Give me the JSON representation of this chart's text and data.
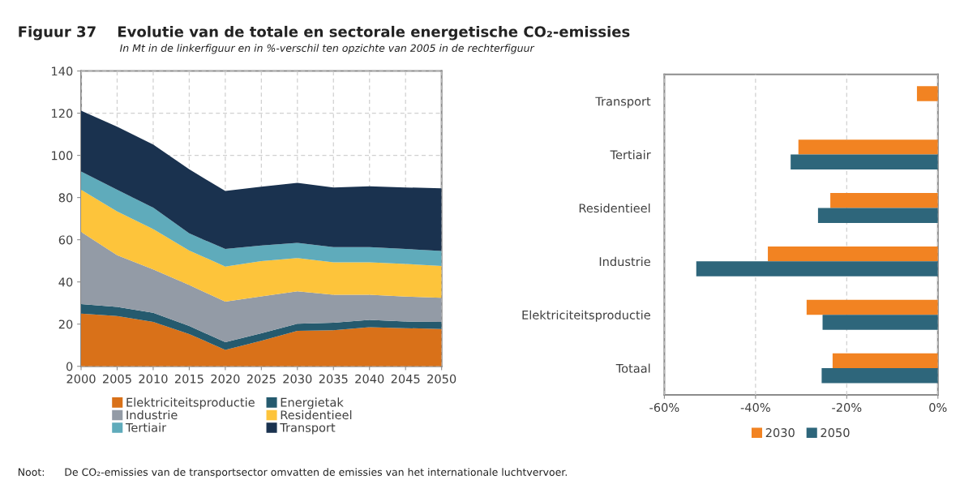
{
  "chart_data": [
    {
      "type": "area",
      "stacked": true,
      "title": "Figuur 37    Evolutie van de totale en sectorale energetische CO₂-emissies",
      "subtitle": "In Mt in de linkerfiguur en in %-verschil ten opzichte van 2005 in de rechterfiguur",
      "x": [
        2000,
        2005,
        2010,
        2015,
        2020,
        2025,
        2030,
        2035,
        2040,
        2045,
        2050
      ],
      "series": [
        {
          "name": "Elektriciteitsproductie",
          "color": "#d97119",
          "values": [
            25.0,
            23.8,
            21.0,
            15.3,
            7.8,
            12.1,
            16.8,
            17.1,
            18.5,
            18.1,
            17.7
          ]
        },
        {
          "name": "Energietak",
          "color": "#255a6e",
          "values": [
            4.5,
            4.4,
            4.4,
            3.8,
            3.6,
            3.6,
            3.4,
            3.6,
            3.5,
            3.1,
            3.3
          ]
        },
        {
          "name": "Industrie",
          "color": "#939ba6",
          "values": [
            34.2,
            24.5,
            20.5,
            19.4,
            19.3,
            17.5,
            15.4,
            13.2,
            11.9,
            11.9,
            11.5
          ]
        },
        {
          "name": "Residentieel",
          "color": "#fdc43b",
          "values": [
            20.0,
            20.7,
            19.2,
            16.4,
            16.6,
            16.7,
            15.7,
            15.4,
            15.4,
            15.4,
            15.1
          ]
        },
        {
          "name": "Tertiair",
          "color": "#5fabbb",
          "values": [
            8.7,
            10.3,
            10.1,
            8.1,
            8.3,
            7.4,
            7.2,
            7.2,
            7.2,
            7.1,
            7.1
          ]
        },
        {
          "name": "Transport",
          "color": "#1a324f",
          "values": [
            28.8,
            29.9,
            29.9,
            30.4,
            27.5,
            27.8,
            28.5,
            28.3,
            28.8,
            29.2,
            29.7
          ]
        }
      ],
      "xlim": [
        2000,
        2050
      ],
      "xticks": [
        2000,
        2005,
        2010,
        2015,
        2020,
        2025,
        2030,
        2035,
        2040,
        2045,
        2050
      ],
      "ylim": [
        0,
        140
      ],
      "yticks": [
        0,
        20,
        40,
        60,
        80,
        100,
        120,
        140
      ],
      "grid": true,
      "legend": "bottom",
      "annotations": [
        "Noot:      De CO₂-emissies van de transportsector omvatten de emissies van het internationale luchtvervoer."
      ]
    },
    {
      "type": "bar",
      "orientation": "horizontal",
      "categories": [
        "Transport",
        "Tertiair",
        "Residentieel",
        "Industrie",
        "Elektriciteitsproductie",
        "Totaal"
      ],
      "series": [
        {
          "name": "2030",
          "color": "#f28322",
          "values": [
            -4.6,
            -30.6,
            -23.6,
            -37.3,
            -28.8,
            -23.1
          ]
        },
        {
          "name": "2050",
          "color": "#2e667b",
          "values": [
            null,
            -32.3,
            -26.3,
            -53.0,
            -25.3,
            -25.5
          ]
        }
      ],
      "xlim": [
        -60,
        0
      ],
      "xticks": [
        {
          "value": -60,
          "label": "-60%"
        },
        {
          "value": -40,
          "label": "-40%"
        },
        {
          "value": -20,
          "label": "-20%"
        },
        {
          "value": 0,
          "label": "0%"
        }
      ],
      "grid": "x",
      "legend": "bottom"
    }
  ]
}
